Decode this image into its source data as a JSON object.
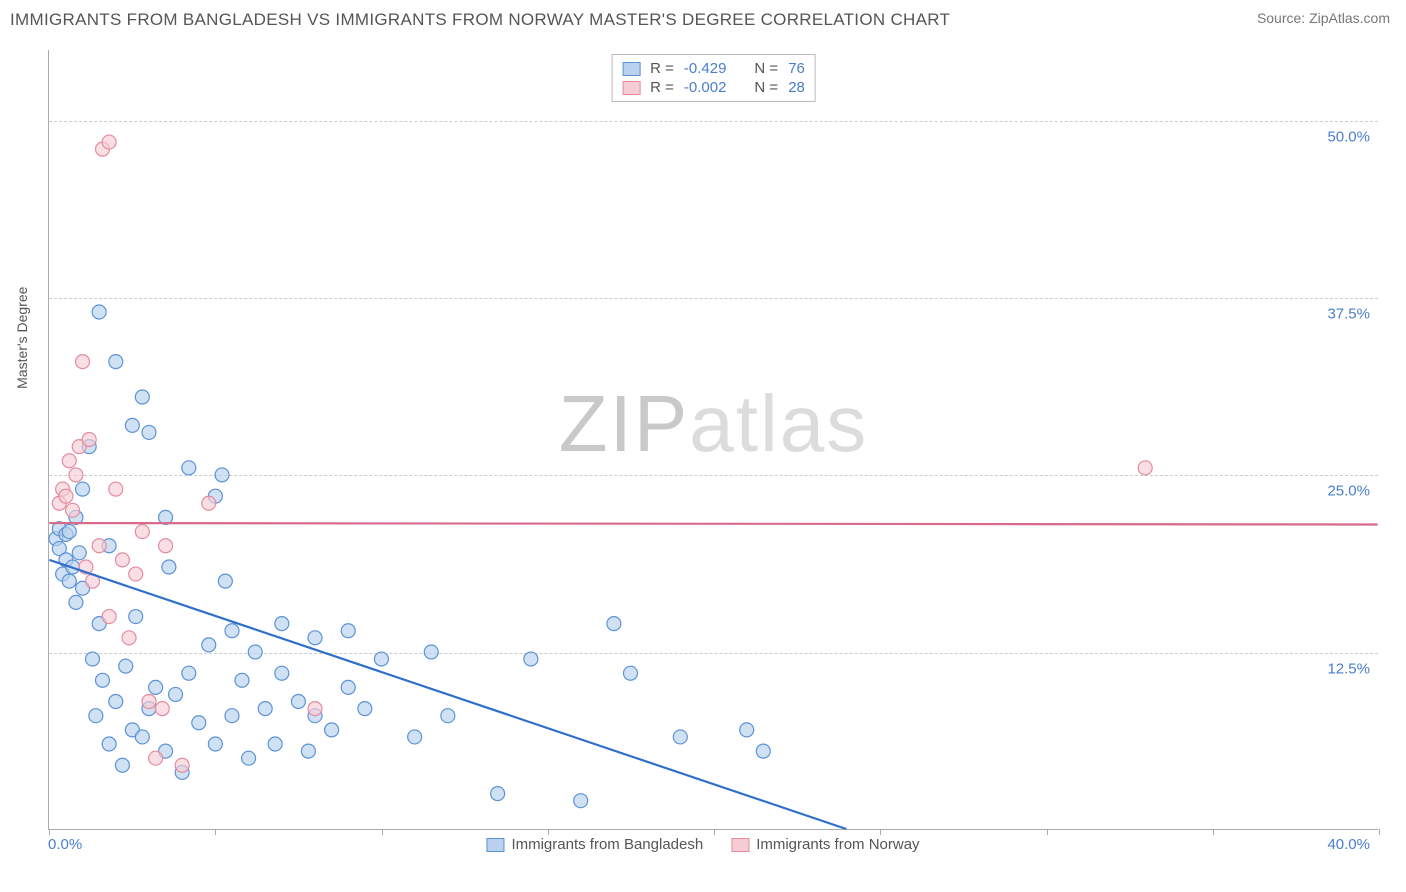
{
  "title": "IMMIGRANTS FROM BANGLADESH VS IMMIGRANTS FROM NORWAY MASTER'S DEGREE CORRELATION CHART",
  "source": "Source: ZipAtlas.com",
  "watermark": {
    "part1": "ZIP",
    "part2": "atlas"
  },
  "y_axis_title": "Master's Degree",
  "chart": {
    "type": "scatter",
    "background_color": "#ffffff",
    "grid_color": "#cccccc",
    "axis_color": "#aaaaaa",
    "xlim": [
      0,
      40
    ],
    "ylim": [
      0,
      55
    ],
    "x_ticks": [
      0,
      5,
      10,
      15,
      20,
      25,
      30,
      35,
      40
    ],
    "y_gridlines": [
      12.5,
      25.0,
      37.5,
      50.0
    ],
    "y_tick_labels": [
      "12.5%",
      "25.0%",
      "37.5%",
      "50.0%"
    ],
    "x_left_label": "0.0%",
    "x_right_label": "40.0%",
    "marker_radius": 7,
    "marker_stroke_width": 1.2,
    "trend_line_width": 2.2
  },
  "series": [
    {
      "key": "bangladesh",
      "label": "Immigrants from Bangladesh",
      "fill": "#b9d1ee",
      "stroke": "#5c93d6",
      "swatch_fill": "#b9d1ee",
      "swatch_border": "#5c93d6",
      "r": "-0.429",
      "n": "76",
      "trend": {
        "x1": 0,
        "y1": 19.0,
        "x2": 24,
        "y2": 0.0,
        "color": "#2e6fc9"
      },
      "points": [
        [
          0.2,
          20.5
        ],
        [
          0.3,
          19.8
        ],
        [
          0.3,
          21.2
        ],
        [
          0.4,
          18.0
        ],
        [
          0.5,
          19.0
        ],
        [
          0.5,
          20.8
        ],
        [
          0.6,
          17.5
        ],
        [
          0.6,
          21.0
        ],
        [
          0.7,
          18.5
        ],
        [
          0.8,
          16.0
        ],
        [
          0.8,
          22.0
        ],
        [
          0.9,
          19.5
        ],
        [
          1.0,
          17.0
        ],
        [
          1.0,
          24.0
        ],
        [
          1.2,
          27.0
        ],
        [
          1.3,
          12.0
        ],
        [
          1.4,
          8.0
        ],
        [
          1.5,
          14.5
        ],
        [
          1.5,
          36.5
        ],
        [
          1.6,
          10.5
        ],
        [
          1.8,
          6.0
        ],
        [
          1.8,
          20.0
        ],
        [
          2.0,
          9.0
        ],
        [
          2.0,
          33.0
        ],
        [
          2.2,
          4.5
        ],
        [
          2.3,
          11.5
        ],
        [
          2.5,
          28.5
        ],
        [
          2.5,
          7.0
        ],
        [
          2.6,
          15.0
        ],
        [
          2.8,
          6.5
        ],
        [
          2.8,
          30.5
        ],
        [
          3.0,
          8.5
        ],
        [
          3.0,
          28.0
        ],
        [
          3.2,
          10.0
        ],
        [
          3.5,
          5.5
        ],
        [
          3.5,
          22.0
        ],
        [
          3.6,
          18.5
        ],
        [
          3.8,
          9.5
        ],
        [
          4.0,
          4.0
        ],
        [
          4.2,
          11.0
        ],
        [
          4.2,
          25.5
        ],
        [
          4.5,
          7.5
        ],
        [
          4.8,
          13.0
        ],
        [
          5.0,
          23.5
        ],
        [
          5.0,
          6.0
        ],
        [
          5.2,
          25.0
        ],
        [
          5.3,
          17.5
        ],
        [
          5.5,
          14.0
        ],
        [
          5.5,
          8.0
        ],
        [
          5.8,
          10.5
        ],
        [
          6.0,
          5.0
        ],
        [
          6.2,
          12.5
        ],
        [
          6.5,
          8.5
        ],
        [
          6.8,
          6.0
        ],
        [
          7.0,
          11.0
        ],
        [
          7.0,
          14.5
        ],
        [
          7.5,
          9.0
        ],
        [
          7.8,
          5.5
        ],
        [
          8.0,
          8.0
        ],
        [
          8.0,
          13.5
        ],
        [
          8.5,
          7.0
        ],
        [
          9.0,
          14.0
        ],
        [
          9.0,
          10.0
        ],
        [
          9.5,
          8.5
        ],
        [
          10.0,
          12.0
        ],
        [
          11.0,
          6.5
        ],
        [
          11.5,
          12.5
        ],
        [
          12.0,
          8.0
        ],
        [
          13.5,
          2.5
        ],
        [
          14.5,
          12.0
        ],
        [
          16.0,
          2.0
        ],
        [
          17.0,
          14.5
        ],
        [
          17.5,
          11.0
        ],
        [
          19.0,
          6.5
        ],
        [
          21.0,
          7.0
        ],
        [
          21.5,
          5.5
        ]
      ]
    },
    {
      "key": "norway",
      "label": "Immigrants from Norway",
      "fill": "#f6cdd5",
      "stroke": "#e38ca0",
      "swatch_fill": "#f6cdd5",
      "swatch_border": "#e38ca0",
      "r": "-0.002",
      "n": "28",
      "trend": {
        "x1": 0,
        "y1": 21.6,
        "x2": 40,
        "y2": 21.5,
        "color": "#d96a8a"
      },
      "points": [
        [
          0.3,
          23.0
        ],
        [
          0.4,
          24.0
        ],
        [
          0.5,
          23.5
        ],
        [
          0.6,
          26.0
        ],
        [
          0.7,
          22.5
        ],
        [
          0.8,
          25.0
        ],
        [
          0.9,
          27.0
        ],
        [
          1.0,
          33.0
        ],
        [
          1.1,
          18.5
        ],
        [
          1.2,
          27.5
        ],
        [
          1.3,
          17.5
        ],
        [
          1.5,
          20.0
        ],
        [
          1.6,
          48.0
        ],
        [
          1.8,
          48.5
        ],
        [
          1.8,
          15.0
        ],
        [
          2.0,
          24.0
        ],
        [
          2.2,
          19.0
        ],
        [
          2.4,
          13.5
        ],
        [
          2.6,
          18.0
        ],
        [
          2.8,
          21.0
        ],
        [
          3.0,
          9.0
        ],
        [
          3.2,
          5.0
        ],
        [
          3.4,
          8.5
        ],
        [
          3.5,
          20.0
        ],
        [
          4.0,
          4.5
        ],
        [
          4.8,
          23.0
        ],
        [
          8.0,
          8.5
        ],
        [
          33.0,
          25.5
        ]
      ]
    }
  ],
  "legend_top_labels": {
    "r": "R =",
    "n": "N ="
  }
}
